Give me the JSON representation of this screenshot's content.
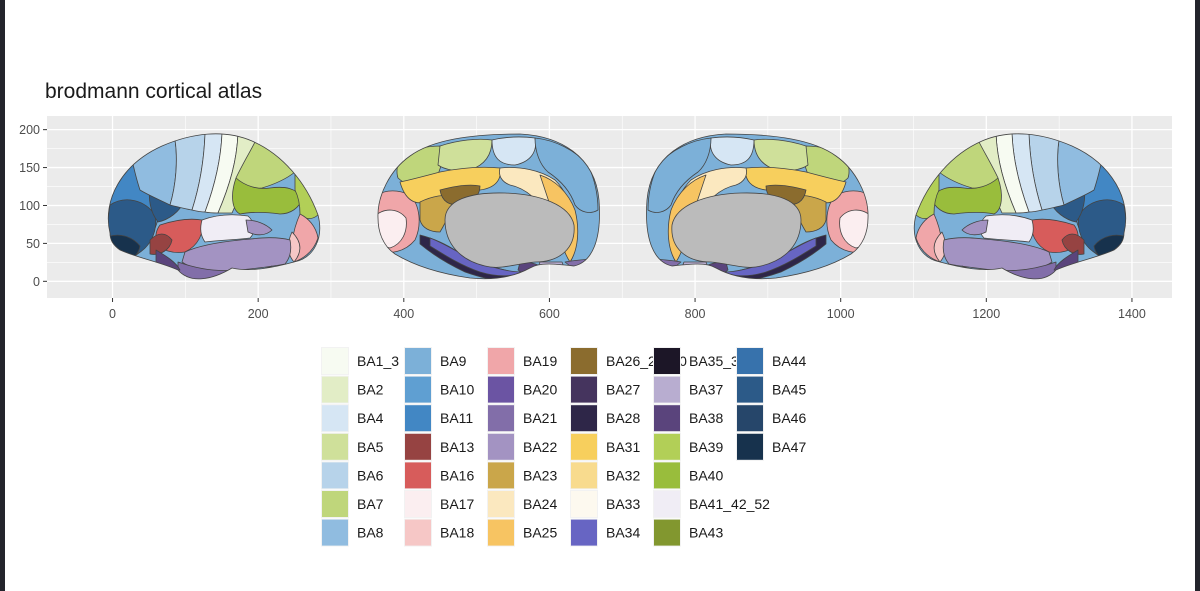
{
  "chart_data": {
    "type": "map",
    "title": "brodmann cortical atlas",
    "xlabel": "",
    "ylabel": "",
    "xlim": [
      -90,
      1455
    ],
    "ylim": [
      -22,
      218
    ],
    "x_ticks": [
      0,
      200,
      400,
      600,
      800,
      1000,
      1200,
      1400
    ],
    "y_ticks": [
      0,
      50,
      100,
      150,
      200
    ],
    "grid": true,
    "background": "#ebebeb",
    "legend_position": "bottom",
    "views": [
      "lateral-left",
      "medial-left",
      "medial-right",
      "lateral-right"
    ],
    "legend": [
      {
        "label": "BA1_3",
        "color": "#f7fbf2"
      },
      {
        "label": "BA2",
        "color": "#e2edc6"
      },
      {
        "label": "BA4",
        "color": "#d6e6f4"
      },
      {
        "label": "BA5",
        "color": "#cfe09a"
      },
      {
        "label": "BA6",
        "color": "#b7d3ea"
      },
      {
        "label": "BA7",
        "color": "#bfd67b"
      },
      {
        "label": "BA8",
        "color": "#90bce0"
      },
      {
        "label": "BA9",
        "color": "#7cb0d8"
      },
      {
        "label": "BA10",
        "color": "#5f9fd2"
      },
      {
        "label": "BA11",
        "color": "#4287c4"
      },
      {
        "label": "BA13",
        "color": "#964342"
      },
      {
        "label": "BA16",
        "color": "#d75c5b"
      },
      {
        "label": "BA17",
        "color": "#fbeef0"
      },
      {
        "label": "BA18",
        "color": "#f6c7c6"
      },
      {
        "label": "BA19",
        "color": "#f0a6a9"
      },
      {
        "label": "BA20",
        "color": "#6b54a3"
      },
      {
        "label": "BA21",
        "color": "#826ea9"
      },
      {
        "label": "BA22",
        "color": "#a393c2"
      },
      {
        "label": "BA23",
        "color": "#caa64a"
      },
      {
        "label": "BA24",
        "color": "#fbe8bf"
      },
      {
        "label": "BA25",
        "color": "#f7c462"
      },
      {
        "label": "BA26_29_30",
        "color": "#8b6c2e"
      },
      {
        "label": "BA27",
        "color": "#45345e"
      },
      {
        "label": "BA28",
        "color": "#2e2648"
      },
      {
        "label": "BA31",
        "color": "#f7cf5d"
      },
      {
        "label": "BA32",
        "color": "#f8db8e"
      },
      {
        "label": "BA33",
        "color": "#fdf9ef"
      },
      {
        "label": "BA34",
        "color": "#6765c3"
      },
      {
        "label": "BA35_36",
        "color": "#1c1627"
      },
      {
        "label": "BA37",
        "color": "#b8add0"
      },
      {
        "label": "BA38",
        "color": "#5a447c"
      },
      {
        "label": "BA39",
        "color": "#b2cf57"
      },
      {
        "label": "BA40",
        "color": "#99bd3c"
      },
      {
        "label": "BA41_42_52",
        "color": "#f0edf5"
      },
      {
        "label": "BA43",
        "color": "#82972f"
      },
      {
        "label": "BA44",
        "color": "#3772ac"
      },
      {
        "label": "BA45",
        "color": "#2c5a88"
      },
      {
        "label": "BA46",
        "color": "#26466a"
      },
      {
        "label": "BA47",
        "color": "#17324d"
      }
    ]
  }
}
